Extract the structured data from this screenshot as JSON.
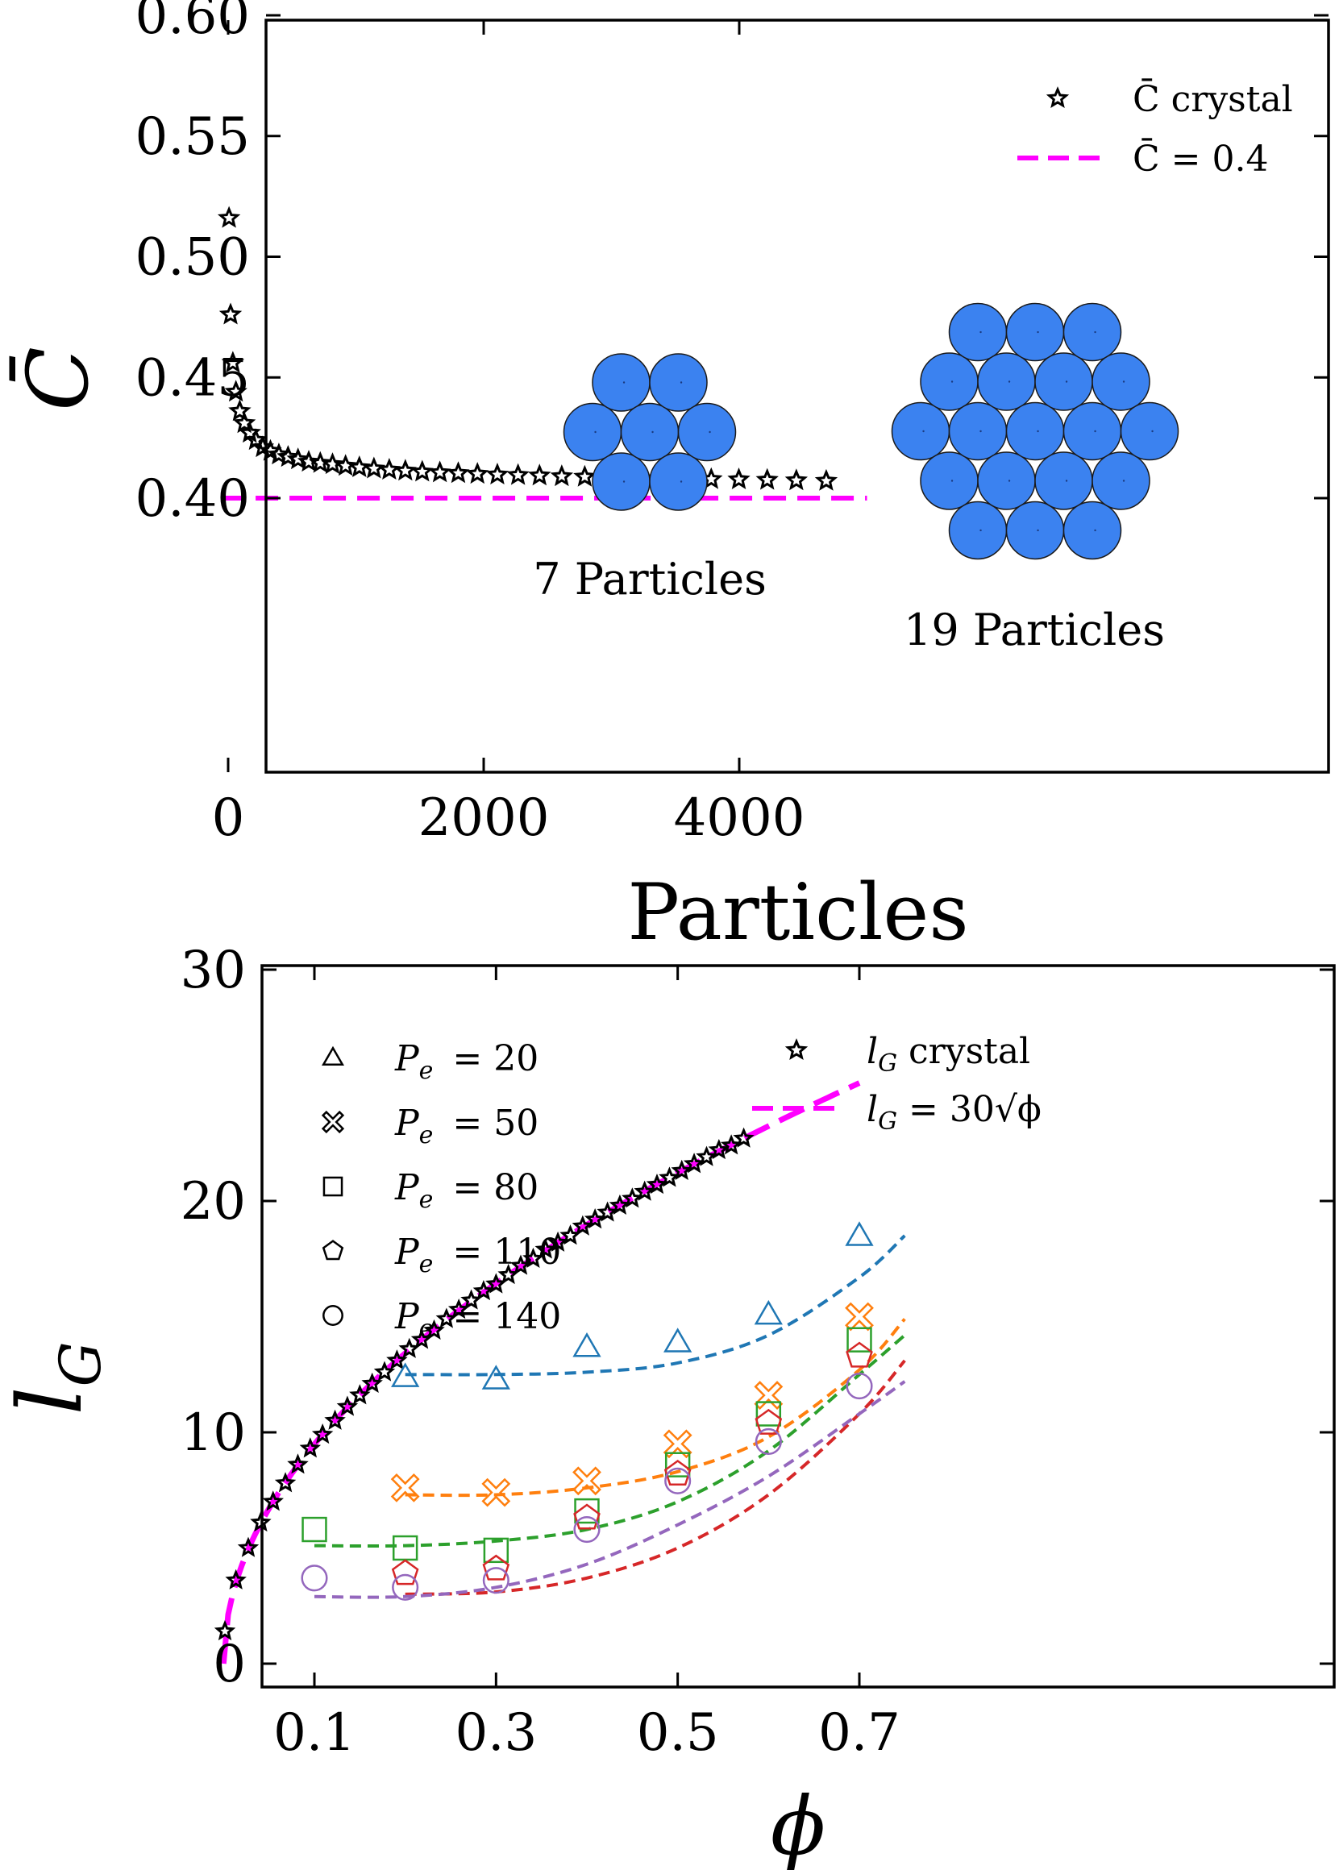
{
  "chart_data": [
    {
      "type": "scatter",
      "xlabel": "Particles",
      "ylabel": "C̄",
      "xlim": [
        -200,
        5100
      ],
      "ylim": [
        0.39,
        0.6
      ],
      "xticks": [
        "0",
        "2000",
        "4000"
      ],
      "xtick_values": [
        0,
        2000,
        4000
      ],
      "yticks": [
        "0.40",
        "0.45",
        "0.50",
        "0.55",
        "0.60"
      ],
      "ytick_values": [
        0.4,
        0.45,
        0.5,
        0.55,
        0.6
      ],
      "legend_position": "top-right",
      "series": [
        {
          "name": "C̄ crystal",
          "marker": "star",
          "color": "#000000",
          "x": [
            7,
            19,
            37,
            61,
            91,
            127,
            169,
            217,
            271,
            331,
            397,
            469,
            547,
            631,
            721,
            817,
            919,
            1027,
            1141,
            1261,
            1387,
            1519,
            1657,
            1801,
            1951,
            2107,
            2269,
            2437,
            2611,
            2791,
            2977,
            3169,
            3367,
            3571,
            3781,
            3997,
            4219,
            4447,
            4681
          ],
          "y": [
            0.516,
            0.476,
            0.456,
            0.444,
            0.436,
            0.431,
            0.427,
            0.424,
            0.421,
            0.4195,
            0.418,
            0.417,
            0.416,
            0.415,
            0.4145,
            0.414,
            0.4133,
            0.4127,
            0.4122,
            0.4117,
            0.4113,
            0.4109,
            0.4106,
            0.4103,
            0.41,
            0.4097,
            0.4095,
            0.4093,
            0.409,
            0.4088,
            0.4086,
            0.4084,
            0.4082,
            0.408,
            0.4078,
            0.4077,
            0.4075,
            0.4073,
            0.4071
          ]
        },
        {
          "name": "C̄ = 0.4",
          "type": "line",
          "dashed": true,
          "color": "#ff00ff",
          "x": [
            -50,
            5000
          ],
          "y": [
            0.4,
            0.4
          ]
        }
      ],
      "annotations": [
        {
          "text": "7 Particles",
          "particles": 7
        },
        {
          "text": "19 Particles",
          "particles": 19
        }
      ],
      "insets": {
        "particle_color": "#3b82f0",
        "particle_stroke": "#1a1a1a"
      }
    },
    {
      "type": "scatter",
      "xlabel": "ϕ",
      "ylabel": "l",
      "ylabel_sub": "G",
      "xlim": [
        -0.0,
        0.75
      ],
      "ylim": [
        -1,
        30
      ],
      "xticks": [
        "0.1",
        "0.3",
        "0.5",
        "0.7"
      ],
      "xtick_values": [
        0.1,
        0.3,
        0.5,
        0.7
      ],
      "yticks": [
        "0",
        "10",
        "20",
        "30"
      ],
      "ytick_values": [
        0,
        10,
        20,
        30
      ],
      "legend_position": "top-left",
      "legend_pe": [
        {
          "marker": "triangle",
          "label": "P",
          "sub": "e",
          "value": "= 20"
        },
        {
          "marker": "x",
          "label": "P",
          "sub": "e",
          "value": "= 50"
        },
        {
          "marker": "square",
          "label": "P",
          "sub": "e",
          "value": "= 80"
        },
        {
          "marker": "pentagon",
          "label": "P",
          "sub": "e",
          "value": "= 110"
        },
        {
          "marker": "circle",
          "label": "P",
          "sub": "e",
          "value": "= 140"
        }
      ],
      "legend_crystal": [
        {
          "marker": "star",
          "label": "l",
          "sub": "G",
          "rest": " crystal"
        },
        {
          "marker": "dash",
          "label": "l",
          "sub": "G",
          "rest": " = 30√ϕ"
        }
      ],
      "crystal": {
        "x": [
          0.0015,
          0.0136,
          0.0272,
          0.0409,
          0.0545,
          0.0681,
          0.0818,
          0.0954,
          0.109,
          0.1227,
          0.1363,
          0.15,
          0.1636,
          0.1772,
          0.1909,
          0.2045,
          0.2181,
          0.2318,
          0.2454,
          0.259,
          0.2727,
          0.2863,
          0.3,
          0.3136,
          0.3272,
          0.3409,
          0.3545,
          0.3681,
          0.3818,
          0.3954,
          0.409,
          0.4227,
          0.4363,
          0.45,
          0.4636,
          0.4772,
          0.4909,
          0.5045,
          0.5181,
          0.5318,
          0.5454,
          0.559,
          0.5727
        ],
        "y": [
          1.4,
          3.6,
          5.0,
          6.1,
          7.0,
          7.8,
          8.6,
          9.3,
          9.9,
          10.5,
          11.1,
          11.6,
          12.1,
          12.6,
          13.1,
          13.6,
          14.0,
          14.4,
          14.9,
          15.3,
          15.7,
          16.1,
          16.4,
          16.8,
          17.2,
          17.5,
          17.9,
          18.2,
          18.5,
          18.9,
          19.2,
          19.5,
          19.8,
          20.1,
          20.4,
          20.7,
          21.0,
          21.3,
          21.6,
          21.9,
          22.2,
          22.4,
          22.7
        ],
        "color": "#000000"
      },
      "sqrt_curve": {
        "coef": 30,
        "x_end": 0.7,
        "color": "#ff00ff"
      },
      "series": [
        {
          "name": "P_e = 20",
          "marker": "triangle",
          "color": "#1f77b4",
          "x": [
            0.2,
            0.3,
            0.4,
            0.5,
            0.6,
            0.7
          ],
          "y": [
            12.4,
            12.3,
            13.7,
            13.9,
            15.1,
            18.5
          ],
          "fit_x": [
            0.2,
            0.3,
            0.4,
            0.5,
            0.6,
            0.7,
            0.75
          ],
          "fit_y": [
            12.5,
            12.5,
            12.6,
            13.0,
            14.2,
            16.7,
            18.5
          ]
        },
        {
          "name": "P_e = 50",
          "marker": "x",
          "color": "#ff7f0e",
          "x": [
            0.2,
            0.3,
            0.4,
            0.5,
            0.6,
            0.7
          ],
          "y": [
            7.6,
            7.4,
            7.9,
            9.5,
            11.6,
            15.0
          ],
          "fit_x": [
            0.2,
            0.3,
            0.4,
            0.5,
            0.6,
            0.7,
            0.75
          ],
          "fit_y": [
            7.3,
            7.3,
            7.6,
            8.3,
            9.8,
            12.7,
            14.9
          ]
        },
        {
          "name": "P_e = 80",
          "marker": "square",
          "color": "#2ca02c",
          "x": [
            0.1,
            0.2,
            0.3,
            0.4,
            0.5,
            0.6,
            0.7
          ],
          "y": [
            5.8,
            5.0,
            4.9,
            6.6,
            8.6,
            10.8,
            14.0
          ],
          "fit_x": [
            0.1,
            0.2,
            0.3,
            0.4,
            0.5,
            0.6,
            0.7,
            0.75
          ],
          "fit_y": [
            5.1,
            5.1,
            5.3,
            5.8,
            7.0,
            9.2,
            12.5,
            14.2
          ]
        },
        {
          "name": "P_e = 110",
          "marker": "pentagon",
          "color": "#d62728",
          "x": [
            0.2,
            0.3,
            0.4,
            0.5,
            0.6,
            0.7
          ],
          "y": [
            3.9,
            4.1,
            6.3,
            8.2,
            10.4,
            13.3
          ],
          "fit_x": [
            0.2,
            0.3,
            0.4,
            0.5,
            0.6,
            0.7,
            0.75
          ],
          "fit_y": [
            3.0,
            3.1,
            3.7,
            5.0,
            7.3,
            10.8,
            13.1
          ]
        },
        {
          "name": "P_e = 140",
          "marker": "circle",
          "color": "#9467bd",
          "x": [
            0.1,
            0.2,
            0.3,
            0.4,
            0.5,
            0.6,
            0.7
          ],
          "y": [
            3.7,
            3.3,
            3.6,
            5.8,
            7.9,
            9.6,
            12.0
          ],
          "fit_x": [
            0.1,
            0.2,
            0.3,
            0.4,
            0.5,
            0.6,
            0.7,
            0.75
          ],
          "fit_y": [
            2.9,
            2.9,
            3.3,
            4.3,
            6.0,
            8.1,
            10.8,
            12.2
          ]
        }
      ]
    }
  ]
}
